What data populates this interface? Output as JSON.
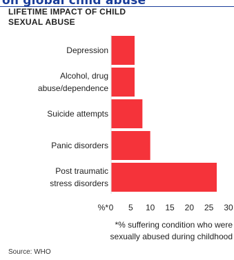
{
  "banner": {
    "text": "on global child abuse"
  },
  "colors": {
    "bar": "#f5333a",
    "banner": "#1a3d99",
    "text": "#222222"
  },
  "chart_data": {
    "type": "bar",
    "orientation": "horizontal",
    "title": "LIFETIME IMPACT OF CHILD SEXUAL ABUSE",
    "categories": [
      "Depression",
      "Alcohol, drug abuse/dependence",
      "Suicide attempts",
      "Panic disorders",
      "Post traumatic stress disorders"
    ],
    "category_lines": [
      [
        "Depression"
      ],
      [
        "Alcohol, drug",
        "abuse/dependence"
      ],
      [
        "Suicide attempts"
      ],
      [
        "Panic disorders"
      ],
      [
        "Post traumatic",
        "stress disorders"
      ]
    ],
    "values": [
      6,
      6,
      8,
      10,
      27
    ],
    "xlim": [
      0,
      30
    ],
    "xticks": [
      0,
      5,
      10,
      15,
      20,
      25,
      30
    ],
    "xunit_label": "%*",
    "grid": false,
    "note_lines": [
      "*% suffering condition who were",
      "sexually abused during childhood"
    ],
    "source": "Source: WHO"
  }
}
